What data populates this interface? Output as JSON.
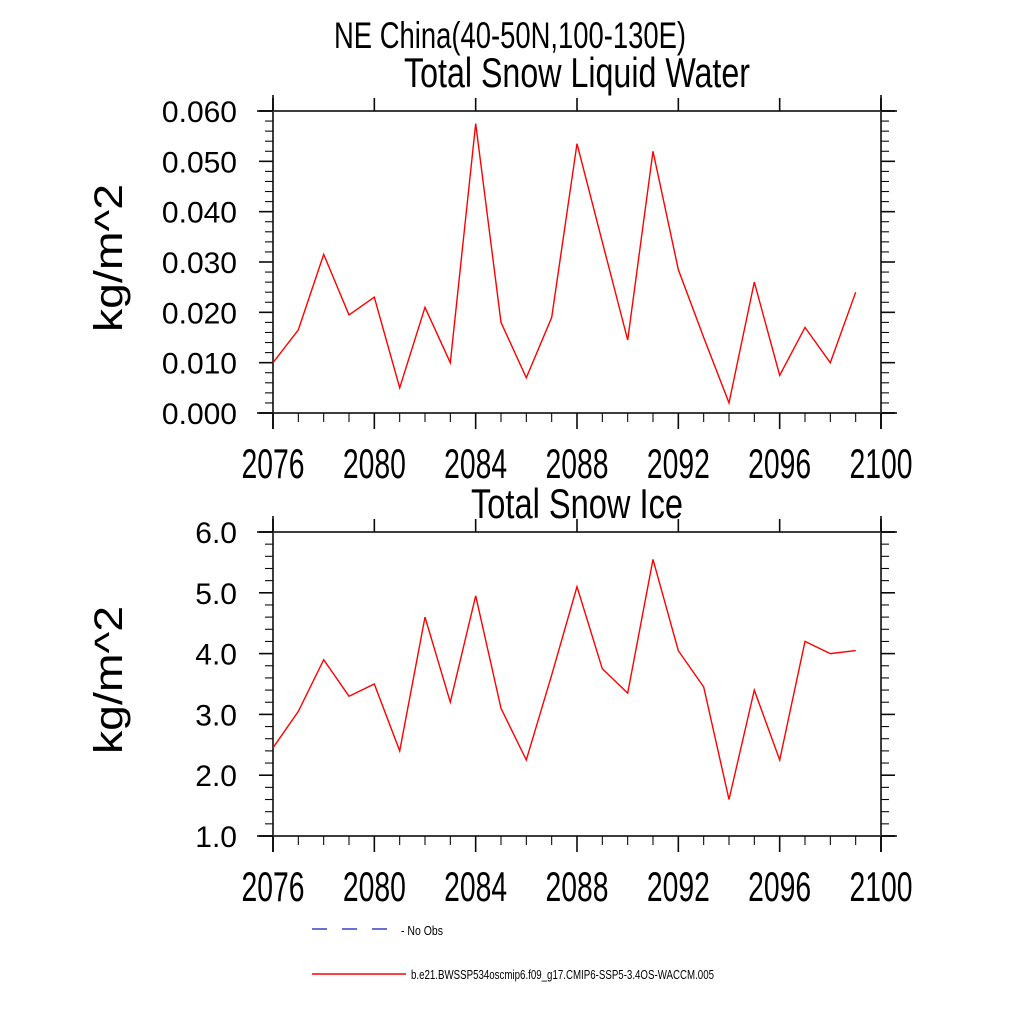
{
  "header": {
    "suptitle": "NE China(40-50N,100-130E)"
  },
  "chart_data": [
    {
      "type": "line",
      "title": "Total Snow Liquid Water",
      "ylabel": "kg/m^2",
      "xlabel": "",
      "xlim": [
        2076,
        2100
      ],
      "ylim": [
        0.0,
        0.06
      ],
      "xticks": [
        2076,
        2080,
        2084,
        2088,
        2092,
        2096,
        2100
      ],
      "x_minor_step": 1,
      "yticks": [
        0.0,
        0.01,
        0.02,
        0.03,
        0.04,
        0.05,
        0.06
      ],
      "ytick_labels": [
        "0.000",
        "0.010",
        "0.020",
        "0.030",
        "0.040",
        "0.050",
        "0.060"
      ],
      "y_minor_step": 0.002,
      "grid": false,
      "legend_position": "bottom",
      "x": [
        2076,
        2077,
        2078,
        2079,
        2080,
        2081,
        2082,
        2083,
        2084,
        2085,
        2086,
        2087,
        2088,
        2089,
        2090,
        2091,
        2092,
        2093,
        2094,
        2095,
        2096,
        2097,
        2098,
        2099
      ],
      "series": [
        {
          "name": "b.e21.BWSSP534oscmip6.f09_g17.CMIP6-SSP5-3.4OS-WACCM.005",
          "color": "#fe0000",
          "values": [
            0.01,
            0.0165,
            0.0315,
            0.0195,
            0.023,
            0.005,
            0.021,
            0.01,
            0.0575,
            0.018,
            0.007,
            0.019,
            0.0535,
            0.034,
            0.0145,
            0.052,
            0.0285,
            0.015,
            0.002,
            0.026,
            0.0075,
            0.017,
            0.01,
            0.024
          ]
        }
      ]
    },
    {
      "type": "line",
      "title": "Total Snow Ice",
      "ylabel": "kg/m^2",
      "xlabel": "",
      "xlim": [
        2076,
        2100
      ],
      "ylim": [
        1.0,
        6.0
      ],
      "xticks": [
        2076,
        2080,
        2084,
        2088,
        2092,
        2096,
        2100
      ],
      "x_minor_step": 1,
      "yticks": [
        1.0,
        2.0,
        3.0,
        4.0,
        5.0,
        6.0
      ],
      "ytick_labels": [
        "1.0",
        "2.0",
        "3.0",
        "4.0",
        "5.0",
        "6.0"
      ],
      "y_minor_step": 0.2,
      "grid": false,
      "legend_position": "bottom",
      "x": [
        2076,
        2077,
        2078,
        2079,
        2080,
        2081,
        2082,
        2083,
        2084,
        2085,
        2086,
        2087,
        2088,
        2089,
        2090,
        2091,
        2092,
        2093,
        2094,
        2095,
        2096,
        2097,
        2098,
        2099
      ],
      "series": [
        {
          "name": "b.e21.BWSSP534oscmip6.f09_g17.CMIP6-SSP5-3.4OS-WACCM.005",
          "color": "#fe0000",
          "values": [
            2.45,
            3.05,
            3.9,
            3.3,
            3.5,
            2.4,
            4.6,
            3.2,
            4.95,
            3.1,
            2.25,
            3.65,
            5.1,
            3.75,
            3.35,
            5.55,
            4.05,
            3.45,
            1.6,
            3.4,
            2.25,
            4.2,
            4.0,
            4.05
          ]
        }
      ]
    }
  ],
  "legend": {
    "items": [
      {
        "label": "- No Obs",
        "color": "#6e6ed6",
        "style": "dashed"
      },
      {
        "label": "b.e21.BWSSP534oscmip6.f09_g17.CMIP6-SSP5-3.4OS-WACCM.005",
        "color": "#fe0000",
        "style": "solid"
      }
    ]
  }
}
